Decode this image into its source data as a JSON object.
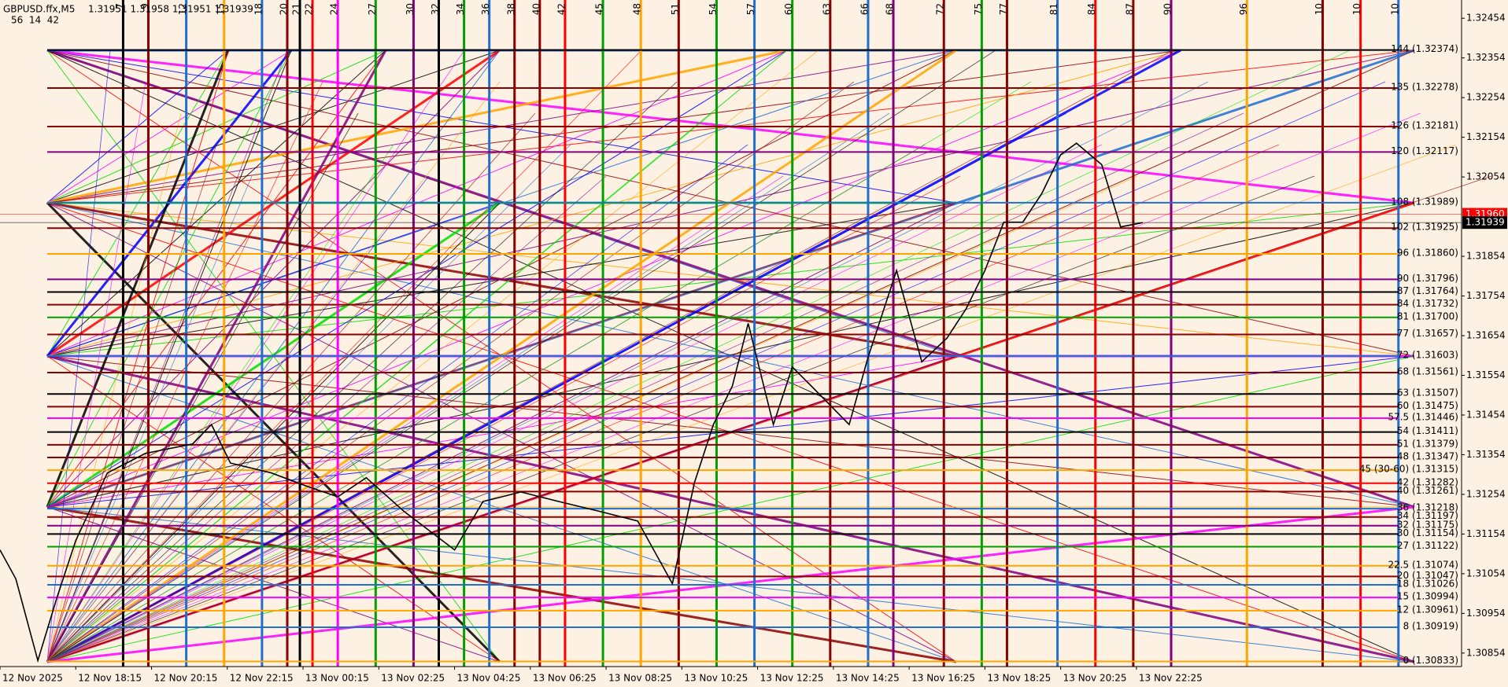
{
  "header": {
    "symbol": "GBPUSD.ffx,M5",
    "ohlc": "1.31951 1.31958 1.31951 1.31939",
    "timer": "56  14  42"
  },
  "chart_data": {
    "type": "line",
    "color": "#000000",
    "x": [
      0,
      5,
      12,
      18,
      24,
      34,
      46,
      61,
      67,
      73,
      86,
      98,
      107,
      116,
      128,
      144,
      153,
      165,
      177,
      190,
      202,
      213,
      220,
      226,
      232,
      237,
      245,
      251,
      257,
      269,
      275,
      284,
      292,
      300,
      306,
      312,
      318,
      324,
      330,
      336,
      341,
      349,
      355,
      362
    ],
    "values": [
      1.31114,
      1.31041,
      1.30835,
      1.30993,
      1.31138,
      1.31308,
      1.31357,
      1.31381,
      1.3143,
      1.31333,
      1.31308,
      1.31272,
      1.31248,
      1.31296,
      1.31211,
      1.31114,
      1.31236,
      1.3126,
      1.31236,
      1.31211,
      1.31187,
      1.31029,
      1.31284,
      1.3143,
      1.31527,
      1.31685,
      1.3143,
      1.31575,
      1.31527,
      1.3143,
      1.316,
      1.31818,
      1.31588,
      1.31648,
      1.31721,
      1.31818,
      1.3194,
      1.3194,
      1.32012,
      1.3211,
      1.32139,
      1.32085,
      1.31928,
      1.31939
    ],
    "xlim": [
      0,
      463
    ],
    "ylim": [
      1.3082,
      1.325
    ],
    "yticks": [
      1.32454,
      1.32354,
      1.32254,
      1.32154,
      1.32054,
      1.31854,
      1.31754,
      1.31654,
      1.31554,
      1.31454,
      1.31354,
      1.31254,
      1.31154,
      1.31054,
      1.30954,
      1.30854
    ],
    "xticks": [
      {
        "value": 0,
        "label": "12 Nov 2025"
      },
      {
        "value": 24,
        "label": "12 Nov 18:15"
      },
      {
        "value": 48,
        "label": "12 Nov 20:15"
      },
      {
        "value": 72,
        "label": "12 Nov 22:15"
      },
      {
        "value": 96,
        "label": "13 Nov 00:15"
      },
      {
        "value": 120,
        "label": "13 Nov 02:25"
      },
      {
        "value": 144,
        "label": "13 Nov 04:25"
      },
      {
        "value": 168,
        "label": "13 Nov 06:25"
      },
      {
        "value": 192,
        "label": "13 Nov 08:25"
      },
      {
        "value": 216,
        "label": "13 Nov 10:25"
      },
      {
        "value": 240,
        "label": "13 Nov 12:25"
      },
      {
        "value": 264,
        "label": "13 Nov 14:25"
      },
      {
        "value": 288,
        "label": "13 Nov 16:25"
      },
      {
        "value": 312,
        "label": "13 Nov 18:25"
      },
      {
        "value": 336,
        "label": "13 Nov 20:25"
      },
      {
        "value": 360,
        "label": "13 Nov 22:25"
      }
    ],
    "ask": {
      "value": 1.3196,
      "label": "1.31960",
      "color": "#ff0000"
    },
    "bid": {
      "value": 1.31939,
      "label": "1.31939",
      "color": "#000000"
    },
    "levels": [
      {
        "value": 1.32374,
        "label": "144 (1.32374)",
        "color": "#000000"
      },
      {
        "value": 1.32278,
        "label": "135 (1.32278)",
        "color": "#8b0000"
      },
      {
        "value": 1.32181,
        "label": "126 (1.32181)",
        "color": "#8b0000"
      },
      {
        "value": 1.32117,
        "label": "120 (1.32117)",
        "color": "#800080"
      },
      {
        "value": 1.31989,
        "label": "108 (1.31989)",
        "color": "#1e6fd0"
      },
      {
        "value": 1.31925,
        "label": "102 (1.31925)",
        "color": "#8b0000"
      },
      {
        "value": 1.3186,
        "label": "96 (1.31860)",
        "color": "#ffa500"
      },
      {
        "value": 1.31796,
        "label": "90 (1.31796)",
        "color": "#800080"
      },
      {
        "value": 1.31764,
        "label": "87 (1.31764)",
        "color": "#000000"
      },
      {
        "value": 1.31732,
        "label": "84 (1.31732)",
        "color": "#8b0000"
      },
      {
        "value": 1.317,
        "label": "81 (1.31700)",
        "color": "#00a000"
      },
      {
        "value": 1.31657,
        "label": "77 (1.31657)",
        "color": "#8b0000"
      },
      {
        "value": 1.31603,
        "label": "72 (1.31603)",
        "color": "#1e6fd0"
      },
      {
        "value": 1.31561,
        "label": "68 (1.31561)",
        "color": "#8b0000"
      },
      {
        "value": 1.31507,
        "label": "63 (1.31507)",
        "color": "#000000"
      },
      {
        "value": 1.31475,
        "label": "60 (1.31475)",
        "color": "#8b0000"
      },
      {
        "value": 1.31446,
        "label": "57.5 (1.31446)",
        "color": "#ff00ff"
      },
      {
        "value": 1.31411,
        "label": "54 (1.31411)",
        "color": "#000000"
      },
      {
        "value": 1.31379,
        "label": "51 (1.31379)",
        "color": "#8b0000"
      },
      {
        "value": 1.31347,
        "label": "48 (1.31347)",
        "color": "#8b0000"
      },
      {
        "value": 1.31315,
        "label": "45 (30-60) (1.31315)",
        "color": "#ffa500"
      },
      {
        "value": 1.31282,
        "label": "42 (1.31282)",
        "color": "#ff0000"
      },
      {
        "value": 1.31261,
        "label": "40 (1.31261)",
        "color": "#8b0000"
      },
      {
        "value": 1.31218,
        "label": "36 (1.31218)",
        "color": "#1e6fd0"
      },
      {
        "value": 1.31197,
        "label": "34 (1.31197)",
        "color": "#8b0000"
      },
      {
        "value": 1.31175,
        "label": "32 (1.31175)",
        "color": "#800080"
      },
      {
        "value": 1.31154,
        "label": "30 (1.31154)",
        "color": "#000000"
      },
      {
        "value": 1.31122,
        "label": "27 (1.31122)",
        "color": "#00a000"
      },
      {
        "value": 1.31074,
        "label": "22.5 (1.31074)",
        "color": "#ffa500"
      },
      {
        "value": 1.31047,
        "label": "20 (1.31047)",
        "color": "#8b0000"
      },
      {
        "value": 1.31026,
        "label": "18 (1.31026)",
        "color": "#1e6fd0"
      },
      {
        "value": 1.30994,
        "label": "15 (1.30994)",
        "color": "#ff00ff"
      },
      {
        "value": 1.30961,
        "label": "12 (1.30961)",
        "color": "#ffa500"
      },
      {
        "value": 1.30919,
        "label": "8 (1.30919)",
        "color": "#1e6fd0"
      },
      {
        "value": 1.30833,
        "label": "0 (1.30833)",
        "color": "#ffa500"
      }
    ],
    "cycles": [
      {
        "value": 39,
        "label": "7",
        "color": "#000000"
      },
      {
        "value": 47,
        "label": "9",
        "color": "#8b0000"
      },
      {
        "value": 59,
        "label": "12",
        "color": "#1e6fd0"
      },
      {
        "value": 71,
        "label": "15",
        "color": "#ffa500"
      },
      {
        "value": 83,
        "label": "18",
        "color": "#1e6fd0"
      },
      {
        "value": 91,
        "label": "20",
        "color": "#8b0000"
      },
      {
        "value": 95,
        "label": "21",
        "color": "#000000"
      },
      {
        "value": 99,
        "label": "22",
        "color": "#ff0000"
      },
      {
        "value": 107,
        "label": "24",
        "color": "#ff00ff"
      },
      {
        "value": 119,
        "label": "27",
        "color": "#00a000"
      },
      {
        "value": 131,
        "label": "30",
        "color": "#800080"
      },
      {
        "value": 139,
        "label": "32",
        "color": "#000000"
      },
      {
        "value": 147,
        "label": "34",
        "color": "#00a000"
      },
      {
        "value": 155,
        "label": "36",
        "color": "#1e6fd0"
      },
      {
        "value": 163,
        "label": "38",
        "color": "#8b0000"
      },
      {
        "value": 171,
        "label": "40",
        "color": "#8b0000"
      },
      {
        "value": 179,
        "label": "42",
        "color": "#ff0000"
      },
      {
        "value": 191,
        "label": "45",
        "color": "#00a000"
      },
      {
        "value": 203,
        "label": "48",
        "color": "#ffa500"
      },
      {
        "value": 215,
        "label": "51",
        "color": "#8b0000"
      },
      {
        "value": 227,
        "label": "54",
        "color": "#00a000"
      },
      {
        "value": 239,
        "label": "57",
        "color": "#1e6fd0"
      },
      {
        "value": 251,
        "label": "60",
        "color": "#00a000"
      },
      {
        "value": 263,
        "label": "63",
        "color": "#8b0000"
      },
      {
        "value": 275,
        "label": "66",
        "color": "#1e6fd0"
      },
      {
        "value": 283,
        "label": "68",
        "color": "#800080"
      },
      {
        "value": 299,
        "label": "72",
        "color": "#8b0000"
      },
      {
        "value": 311,
        "label": "75",
        "color": "#00a000"
      },
      {
        "value": 319,
        "label": "77",
        "color": "#8b0000"
      },
      {
        "value": 335,
        "label": "81",
        "color": "#1e6fd0"
      },
      {
        "value": 347,
        "label": "84",
        "color": "#ff0000"
      },
      {
        "value": 359,
        "label": "87",
        "color": "#8b0000"
      },
      {
        "value": 371,
        "label": "90",
        "color": "#800080"
      },
      {
        "value": 395,
        "label": "96",
        "color": "#ffa500"
      },
      {
        "value": 419,
        "label": "10",
        "color": "#8b0000"
      },
      {
        "value": 431,
        "label": "10",
        "color": "#ff0000"
      },
      {
        "value": 443,
        "label": "10",
        "color": "#1e6fd0"
      }
    ]
  }
}
